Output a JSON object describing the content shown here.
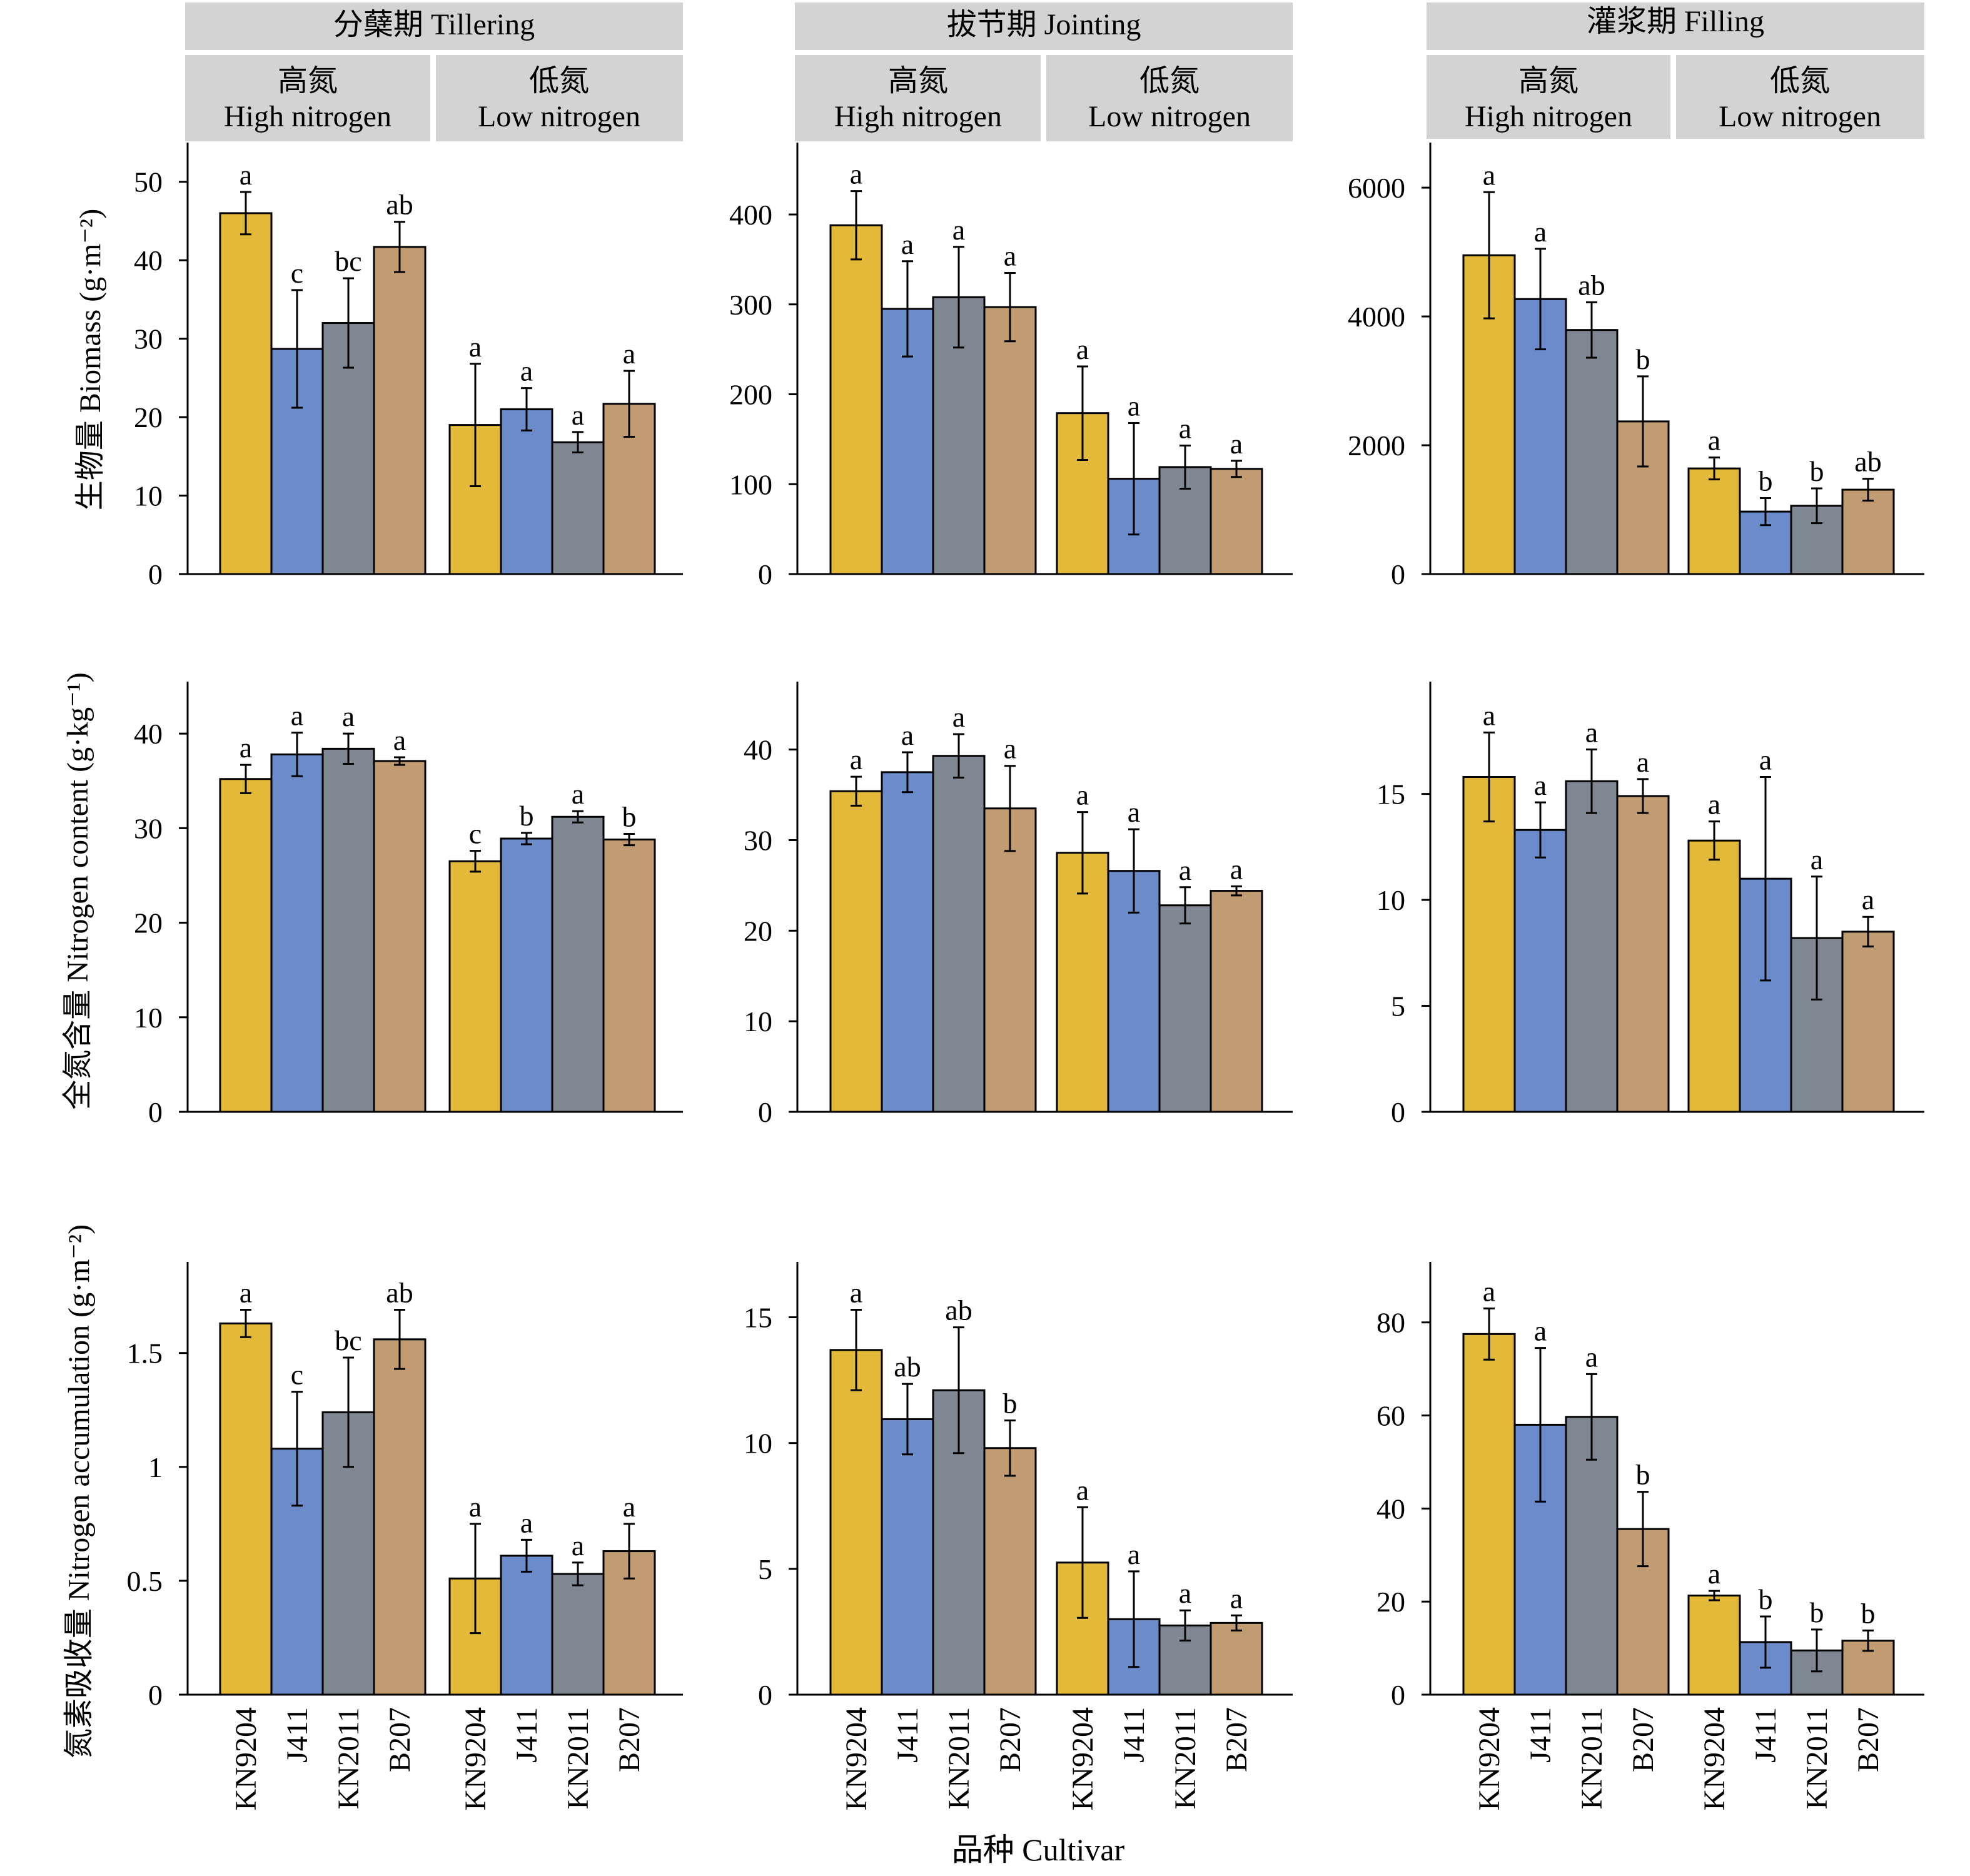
{
  "stages": [
    "分蘖期 Tillering",
    "拔节期 Jointing",
    "灌浆期 Filling"
  ],
  "treatments": [
    {
      "cn": "高氮",
      "en": "High nitrogen"
    },
    {
      "cn": "低氮",
      "en": "Low nitrogen"
    }
  ],
  "cultivars": [
    "KN9204",
    "J411",
    "KN2011",
    "B207"
  ],
  "row_labels": [
    "生物量 Biomass (g·m⁻²)",
    "全氮含量 Nitrogen content (g·kg⁻¹)",
    "氮素吸收量 Nitrogen accumulation (g·m⁻²)"
  ],
  "xlabel": "品种 Cultivar",
  "colors": {
    "KN9204": "#e3b93a",
    "J411": "#6b8bca",
    "KN2011": "#7f8793",
    "B207": "#c19b72",
    "header_bg": "#d3d3d3"
  },
  "chart_data": [
    {
      "type": "bar",
      "row": 0,
      "col": 0,
      "ylim": [
        0,
        55
      ],
      "yticks": [
        0,
        10,
        20,
        30,
        40,
        50
      ],
      "values": [
        46,
        28.7,
        32,
        41.7,
        19,
        21,
        16.8,
        21.7
      ],
      "errors": [
        2.7,
        7.5,
        5.7,
        3.2,
        7.8,
        2.7,
        1.3,
        4.2
      ],
      "letters": [
        "a",
        "c",
        "bc",
        "ab",
        "a",
        "a",
        "a",
        "a"
      ]
    },
    {
      "type": "bar",
      "row": 0,
      "col": 1,
      "ylim": [
        0,
        480
      ],
      "yticks": [
        0,
        100,
        200,
        300,
        400
      ],
      "values": [
        388,
        295,
        308,
        297,
        179,
        106,
        119,
        117
      ],
      "errors": [
        38,
        53,
        56,
        38,
        52,
        62,
        24,
        9
      ],
      "letters": [
        "a",
        "a",
        "a",
        "a",
        "a",
        "a",
        "a",
        "a"
      ]
    },
    {
      "type": "bar",
      "row": 0,
      "col": 2,
      "ylim": [
        0,
        6700
      ],
      "yticks": [
        0,
        2000,
        4000,
        6000
      ],
      "values": [
        4950,
        4270,
        3790,
        2370,
        1640,
        970,
        1060,
        1310
      ],
      "errors": [
        980,
        780,
        430,
        700,
        170,
        210,
        270,
        170
      ],
      "letters": [
        "a",
        "a",
        "ab",
        "b",
        "a",
        "b",
        "b",
        "ab"
      ]
    },
    {
      "type": "bar",
      "row": 1,
      "col": 0,
      "ylim": [
        0,
        45.5
      ],
      "yticks": [
        0,
        10,
        20,
        30,
        40
      ],
      "values": [
        35.2,
        37.8,
        38.4,
        37.1,
        26.5,
        28.9,
        31.2,
        28.8
      ],
      "errors": [
        1.5,
        2.3,
        1.6,
        0.4,
        1.1,
        0.6,
        0.6,
        0.6
      ],
      "letters": [
        "a",
        "a",
        "a",
        "a",
        "c",
        "b",
        "a",
        "b"
      ]
    },
    {
      "type": "bar",
      "row": 1,
      "col": 1,
      "ylim": [
        0,
        47.5
      ],
      "yticks": [
        0,
        10,
        20,
        30,
        40
      ],
      "values": [
        35.4,
        37.5,
        39.3,
        33.5,
        28.6,
        26.6,
        22.8,
        24.4
      ],
      "errors": [
        1.6,
        2.2,
        2.4,
        4.7,
        4.5,
        4.6,
        2.0,
        0.5
      ],
      "letters": [
        "a",
        "a",
        "a",
        "a",
        "a",
        "a",
        "a",
        "a"
      ]
    },
    {
      "type": "bar",
      "row": 1,
      "col": 2,
      "ylim": [
        0,
        20.3
      ],
      "yticks": [
        0,
        5,
        10,
        15
      ],
      "values": [
        15.8,
        13.3,
        15.6,
        14.9,
        12.8,
        11.0,
        8.2,
        8.5
      ],
      "errors": [
        2.1,
        1.3,
        1.5,
        0.8,
        0.9,
        4.8,
        2.9,
        0.7
      ],
      "letters": [
        "a",
        "a",
        "a",
        "a",
        "a",
        "a",
        "a",
        "a"
      ]
    },
    {
      "type": "bar",
      "row": 2,
      "col": 0,
      "ylim": [
        0,
        1.9
      ],
      "yticks": [
        0,
        0.5,
        1.0,
        1.5
      ],
      "values": [
        1.63,
        1.08,
        1.24,
        1.56,
        0.51,
        0.61,
        0.53,
        0.63
      ],
      "errors": [
        0.06,
        0.25,
        0.24,
        0.13,
        0.24,
        0.07,
        0.05,
        0.12
      ],
      "letters": [
        "a",
        "c",
        "bc",
        "ab",
        "a",
        "a",
        "a",
        "a"
      ]
    },
    {
      "type": "bar",
      "row": 2,
      "col": 1,
      "ylim": [
        0,
        17.2
      ],
      "yticks": [
        0,
        5,
        10,
        15
      ],
      "values": [
        13.7,
        10.95,
        12.1,
        9.8,
        5.25,
        3.0,
        2.75,
        2.85
      ],
      "errors": [
        1.6,
        1.4,
        2.5,
        1.1,
        2.2,
        1.9,
        0.6,
        0.3
      ],
      "letters": [
        "a",
        "ab",
        "ab",
        "b",
        "a",
        "a",
        "a",
        "a"
      ]
    },
    {
      "type": "bar",
      "row": 2,
      "col": 2,
      "ylim": [
        0,
        93
      ],
      "yticks": [
        0,
        20,
        40,
        60,
        80
      ],
      "values": [
        77.5,
        58,
        59.7,
        35.6,
        21.3,
        11.3,
        9.5,
        11.6
      ],
      "errors": [
        5.5,
        16.5,
        9.2,
        8.0,
        1.0,
        5.5,
        4.5,
        2.2
      ],
      "letters": [
        "a",
        "a",
        "a",
        "b",
        "a",
        "b",
        "b",
        "b"
      ]
    }
  ]
}
